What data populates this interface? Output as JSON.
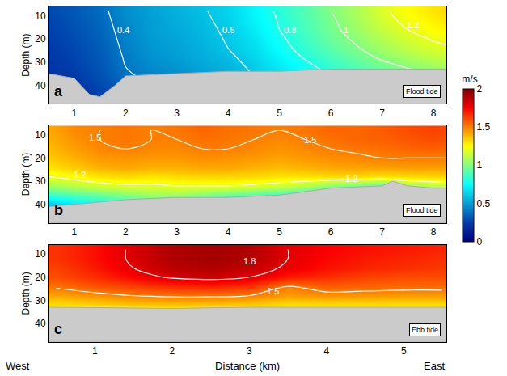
{
  "chart_data": {
    "type": "heatmap",
    "x_label": "Distance (km)",
    "annotations": [
      "West",
      "East"
    ],
    "colorbar": {
      "title": "m/s",
      "range": [
        0,
        2
      ],
      "ticks": [
        0,
        0.5,
        1,
        1.5,
        2
      ]
    },
    "panels": [
      {
        "panel": "a",
        "y_label": "Depth (m)",
        "inset_label": "Flood tide",
        "xlim": [
          0.5,
          8.25
        ],
        "xticks": [
          1,
          2,
          3,
          4,
          5,
          6,
          7,
          8
        ],
        "ylim": [
          48,
          6
        ],
        "yticks": [
          10,
          20,
          30,
          40
        ],
        "x": [
          0.5,
          1,
          1.5,
          2,
          2.5,
          3,
          3.5,
          4,
          4.5,
          5,
          5.5,
          6,
          6.5,
          7,
          7.5,
          8,
          8.5
        ],
        "y": [
          8,
          12,
          16,
          20,
          24,
          28,
          32,
          36,
          40,
          44
        ],
        "z": [
          [
            0.28,
            0.32,
            0.37,
            0.46,
            0.51,
            0.55,
            0.59,
            0.64,
            0.73,
            0.82,
            0.9,
            1.0,
            1.08,
            1.18,
            1.25,
            1.3,
            1.33
          ],
          [
            0.27,
            0.31,
            0.36,
            0.45,
            0.5,
            0.54,
            0.58,
            0.63,
            0.72,
            0.81,
            0.89,
            0.98,
            1.07,
            1.16,
            1.23,
            1.28,
            1.31
          ],
          [
            0.26,
            0.3,
            0.35,
            0.44,
            0.5,
            0.53,
            0.57,
            0.62,
            0.7,
            0.8,
            0.88,
            0.97,
            1.05,
            1.13,
            1.2,
            1.25,
            1.28
          ],
          [
            0.25,
            0.29,
            0.34,
            0.43,
            0.49,
            0.52,
            0.56,
            0.61,
            0.68,
            0.78,
            0.86,
            0.95,
            1.02,
            1.1,
            1.16,
            1.21,
            1.24
          ],
          [
            0.24,
            0.28,
            0.33,
            0.42,
            0.48,
            0.51,
            0.55,
            0.6,
            0.66,
            0.76,
            0.84,
            0.92,
            0.99,
            1.06,
            1.12,
            1.17,
            1.2
          ],
          [
            0.23,
            0.27,
            0.32,
            0.41,
            0.47,
            0.5,
            0.54,
            0.58,
            0.64,
            0.73,
            0.81,
            0.88,
            0.95,
            1.02,
            1.07,
            1.12,
            1.15
          ],
          [
            0.22,
            0.26,
            0.31,
            0.4,
            0.45,
            0.48,
            0.52,
            0.56,
            0.62,
            0.7,
            0.77,
            0.84,
            0.9,
            0.96,
            1.01,
            1.05,
            1.08
          ],
          [
            0.2,
            0.24,
            0.3,
            0.38,
            0.43,
            0.46,
            0.5,
            0.54,
            0.6,
            0.67,
            0.74,
            0.8,
            0.86,
            0.91,
            0.95,
            0.98,
            1.0
          ],
          [
            0.18,
            0.22,
            0.28,
            0.35,
            0.4,
            0.44,
            0.48,
            0.52,
            0.57,
            0.64,
            0.7,
            0.76,
            0.8,
            0.85,
            0.88,
            0.9,
            0.92
          ],
          [
            0.15,
            0.2,
            0.26,
            0.32,
            0.38,
            0.42,
            0.46,
            0.5,
            0.55,
            0.6,
            0.66,
            0.72,
            0.76,
            0.8,
            0.82,
            0.85,
            0.88
          ]
        ],
        "contour_levels": [
          0.4,
          0.6,
          0.8,
          1,
          1.2
        ],
        "contour_labels": [
          {
            "x": 1.95,
            "y": 16,
            "text": "0.4"
          },
          {
            "x": 4.0,
            "y": 16,
            "text": "0.6"
          },
          {
            "x": 5.2,
            "y": 16,
            "text": "0.8"
          },
          {
            "x": 6.3,
            "y": 16,
            "text": "1"
          },
          {
            "x": 7.6,
            "y": 14,
            "text": "1.2"
          }
        ],
        "seabed": {
          "x": [
            0,
            0.5,
            1,
            1.3,
            1.5,
            1.8,
            2,
            3,
            4,
            5,
            6,
            7,
            8,
            8.5
          ],
          "depth": [
            35,
            35,
            37,
            44,
            45,
            40,
            36,
            35,
            34,
            34,
            33,
            33,
            33,
            33
          ]
        }
      },
      {
        "panel": "b",
        "y_label": "Depth (m)",
        "inset_label": "Flood tide",
        "xlim": [
          0.5,
          8.25
        ],
        "xticks": [
          1,
          2,
          3,
          4,
          5,
          6,
          7,
          8
        ],
        "ylim": [
          48,
          6
        ],
        "yticks": [
          10,
          20,
          30,
          40
        ],
        "x": [
          0.5,
          1,
          1.5,
          2,
          2.5,
          3,
          3.5,
          4,
          4.5,
          5,
          5.5,
          6,
          6.5,
          7,
          7.5,
          8,
          8.5
        ],
        "y": [
          8,
          12,
          16,
          20,
          24,
          28,
          32,
          36,
          40,
          44
        ],
        "z": [
          [
            1.42,
            1.48,
            1.5,
            1.52,
            1.5,
            1.52,
            1.55,
            1.53,
            1.52,
            1.5,
            1.52,
            1.55,
            1.55,
            1.57,
            1.6,
            1.62,
            1.6
          ],
          [
            1.4,
            1.46,
            1.5,
            1.52,
            1.5,
            1.5,
            1.53,
            1.52,
            1.5,
            1.48,
            1.5,
            1.53,
            1.55,
            1.56,
            1.58,
            1.6,
            1.58
          ],
          [
            1.38,
            1.44,
            1.48,
            1.5,
            1.48,
            1.48,
            1.5,
            1.5,
            1.48,
            1.46,
            1.48,
            1.5,
            1.52,
            1.53,
            1.55,
            1.56,
            1.55
          ],
          [
            1.35,
            1.4,
            1.45,
            1.46,
            1.45,
            1.45,
            1.47,
            1.46,
            1.45,
            1.43,
            1.45,
            1.47,
            1.48,
            1.5,
            1.5,
            1.5,
            1.5
          ],
          [
            1.3,
            1.35,
            1.4,
            1.42,
            1.4,
            1.4,
            1.42,
            1.42,
            1.4,
            1.38,
            1.4,
            1.42,
            1.43,
            1.43,
            1.44,
            1.44,
            1.44
          ],
          [
            1.2,
            1.25,
            1.3,
            1.32,
            1.3,
            1.32,
            1.33,
            1.33,
            1.32,
            1.3,
            1.3,
            1.32,
            1.33,
            1.3,
            1.32,
            1.33,
            1.33
          ],
          [
            1.05,
            1.1,
            1.15,
            1.18,
            1.18,
            1.2,
            1.2,
            1.2,
            1.18,
            1.15,
            1.1,
            1.0,
            0.95,
            0.9,
            1.05,
            1.1,
            1.15
          ],
          [
            0.85,
            0.9,
            0.95,
            1.0,
            1.05,
            1.05,
            1.0,
            0.95,
            0.9,
            0.85,
            0.8,
            0.75,
            0.7,
            0.7,
            0.8,
            0.9,
            0.95
          ],
          [
            0.6,
            0.7,
            0.75,
            0.8,
            0.85,
            0.8,
            0.75,
            0.7,
            0.65,
            0.6,
            0.6,
            0.6,
            0.6,
            0.6,
            0.6,
            0.6,
            0.6
          ],
          [
            0.5,
            0.55,
            0.6,
            0.65,
            0.7,
            0.7,
            0.65,
            0.6,
            0.55,
            0.5,
            0.5,
            0.5,
            0.5,
            0.5,
            0.5,
            0.5,
            0.5
          ]
        ],
        "contour_levels": [
          1.2,
          1.5
        ],
        "contour_labels": [
          {
            "x": 1.4,
            "y": 11,
            "text": "1.5"
          },
          {
            "x": 5.6,
            "y": 12,
            "text": "1.5"
          },
          {
            "x": 1.1,
            "y": 27,
            "text": "1.2"
          },
          {
            "x": 6.4,
            "y": 29,
            "text": "1.2"
          }
        ],
        "seabed": {
          "x": [
            0,
            0.5,
            1,
            2,
            3,
            4,
            5,
            6,
            7,
            7.2,
            7.5,
            8,
            8.5
          ],
          "depth": [
            41,
            41,
            40,
            38,
            37,
            37,
            36,
            33,
            32,
            30,
            32,
            33,
            33
          ]
        }
      },
      {
        "panel": "c",
        "y_label": "Depth (m)",
        "inset_label": "Ebb tide",
        "xlim": [
          0.4,
          5.55
        ],
        "xticks": [
          1,
          2,
          3,
          4,
          5
        ],
        "ylim": [
          48,
          6
        ],
        "yticks": [
          10,
          20,
          30,
          40
        ],
        "x": [
          0.5,
          1,
          1.5,
          2,
          2.5,
          3,
          3.5,
          4,
          4.5,
          5,
          5.5
        ],
        "y": [
          8,
          12,
          16,
          20,
          24,
          28,
          32,
          36
        ],
        "z": [
          [
            1.65,
            1.72,
            1.82,
            1.9,
            1.92,
            1.9,
            1.8,
            1.75,
            1.72,
            1.7,
            1.68
          ],
          [
            1.65,
            1.72,
            1.82,
            1.9,
            1.93,
            1.9,
            1.8,
            1.74,
            1.7,
            1.68,
            1.66
          ],
          [
            1.62,
            1.7,
            1.8,
            1.88,
            1.9,
            1.86,
            1.78,
            1.72,
            1.68,
            1.66,
            1.64
          ],
          [
            1.6,
            1.66,
            1.74,
            1.82,
            1.84,
            1.8,
            1.7,
            1.66,
            1.62,
            1.6,
            1.6
          ],
          [
            1.52,
            1.58,
            1.62,
            1.66,
            1.68,
            1.65,
            1.5,
            1.56,
            1.55,
            1.54,
            1.54
          ],
          [
            1.42,
            1.46,
            1.5,
            1.52,
            1.52,
            1.5,
            1.44,
            1.46,
            1.45,
            1.44,
            1.44
          ],
          [
            1.3,
            1.32,
            1.35,
            1.36,
            1.35,
            1.34,
            1.3,
            1.3,
            1.3,
            1.3,
            1.3
          ],
          [
            1.1,
            1.1,
            1.1,
            1.1,
            1.1,
            1.1,
            1.1,
            1.1,
            1.1,
            1.1,
            1.1
          ]
        ],
        "contour_levels": [
          1.5,
          1.8
        ],
        "contour_labels": [
          {
            "x": 3.0,
            "y": 13,
            "text": "1.8"
          },
          {
            "x": 3.3,
            "y": 26,
            "text": "1.5"
          }
        ],
        "seabed": {
          "x": [
            0,
            0.5,
            2,
            3,
            4,
            5,
            5.6
          ],
          "depth": [
            33,
            33,
            33.5,
            33,
            33,
            33,
            33
          ]
        }
      }
    ]
  }
}
